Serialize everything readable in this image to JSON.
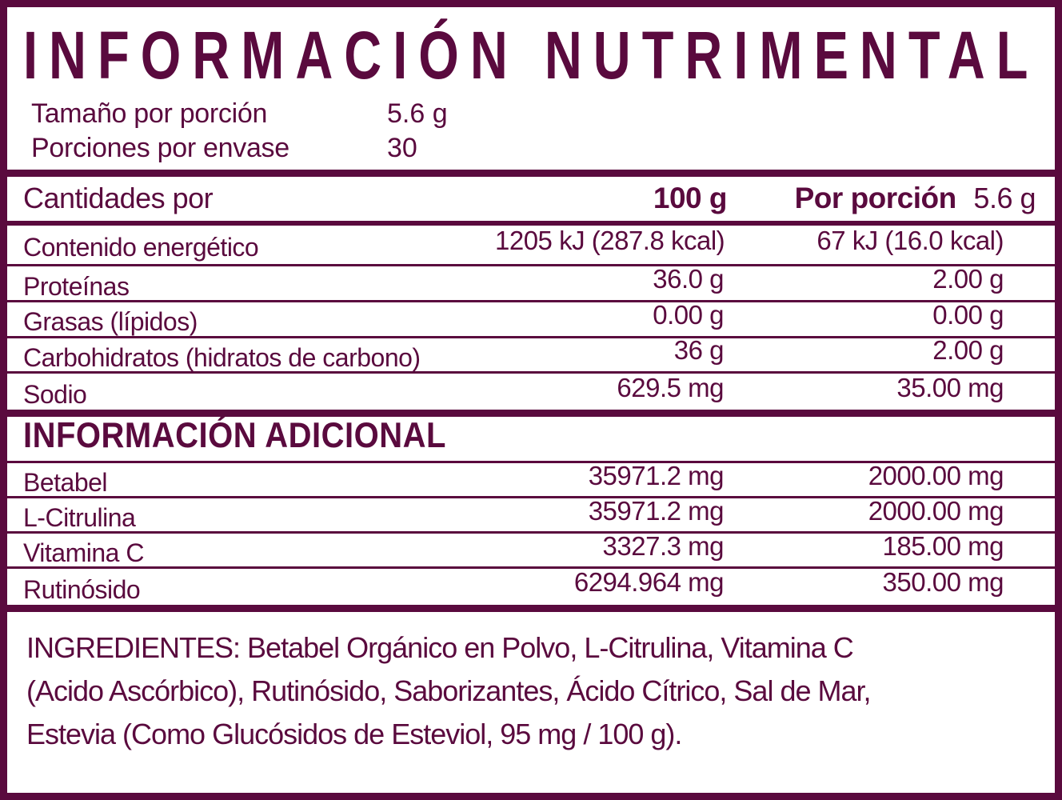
{
  "colors": {
    "maroon": "#5a0a3e"
  },
  "header": {
    "title": "INFORMACIÓN NUTRIMENTAL",
    "serving_size_label": "Tamaño por porción",
    "serving_size_value": "5.6 g",
    "servings_per_container_label": "Porciones por envase",
    "servings_per_container_value": "30"
  },
  "nutrition_table": {
    "header": {
      "col1": "Cantidades por",
      "col2": "100 g",
      "col3_bold": "Por porción",
      "col3_regular": "5.6 g"
    },
    "rows": [
      {
        "label": "Contenido energético",
        "per_100g": "1205 kJ (287.8 kcal)",
        "per_portion": "67 kJ (16.0 kcal)"
      },
      {
        "label": "Proteínas",
        "per_100g": "36.0 g",
        "per_portion": "2.00 g"
      },
      {
        "label": "Grasas (lípidos)",
        "per_100g": "0.00 g",
        "per_portion": "0.00 g"
      },
      {
        "label": "Carbohidratos (hidratos de carbono)",
        "per_100g": "36 g",
        "per_portion": "2.00 g"
      },
      {
        "label": "Sodio",
        "per_100g": "629.5 mg",
        "per_portion": "35.00 mg"
      }
    ]
  },
  "additional_table": {
    "title": "INFORMACIÓN ADICIONAL",
    "rows": [
      {
        "label": "Betabel",
        "per_100g": "35971.2 mg",
        "per_portion": "2000.00 mg"
      },
      {
        "label": "L-Citrulina",
        "per_100g": "35971.2 mg",
        "per_portion": "2000.00 mg"
      },
      {
        "label": "Vitamina C",
        "per_100g": "3327.3 mg",
        "per_portion": "185.00 mg"
      },
      {
        "label": "Rutinósido",
        "per_100g": "6294.964 mg",
        "per_portion": "350.00 mg"
      }
    ]
  },
  "ingredients": {
    "lines": [
      "INGREDIENTES: Betabel Orgánico en Polvo, L-Citrulina, Vitamina C",
      "(Acido Ascórbico), Rutinósido, Saborizantes, Ácido Cítrico, Sal de Mar,",
      "Estevia (Como Glucósidos de Esteviol, 95 mg / 100 g)."
    ]
  }
}
